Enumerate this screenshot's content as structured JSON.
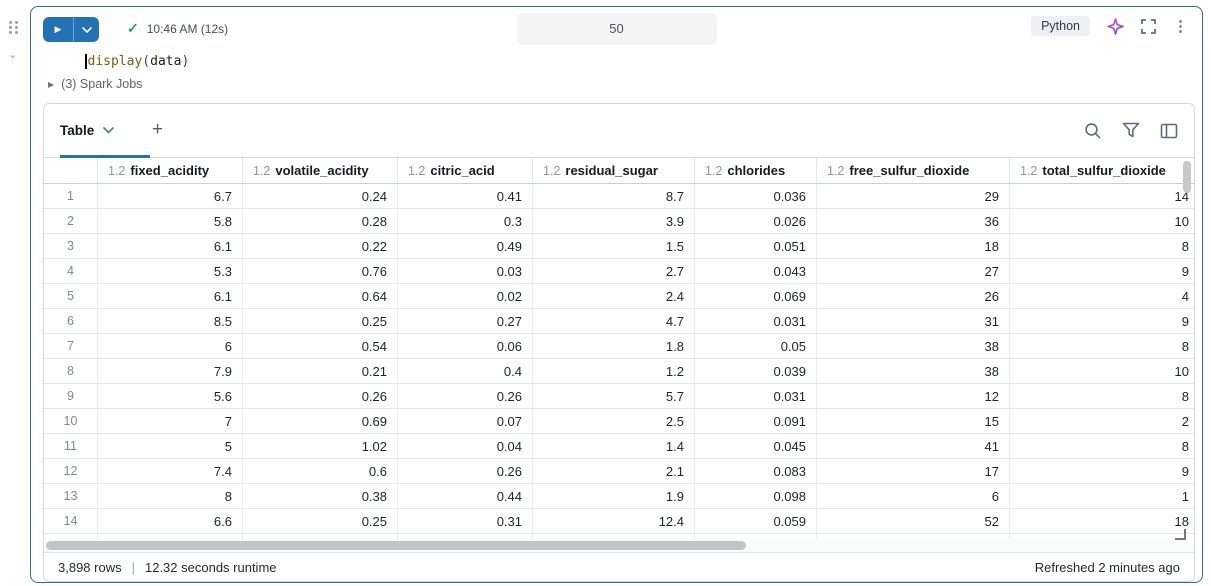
{
  "gutter": {
    "cell_collapse_icon": "⌄"
  },
  "cell_toolbar": {
    "run_icon": "▶",
    "status_icon": "✓",
    "status_text": "10:46 AM (12s)",
    "cell_number": "50",
    "language": "Python",
    "kebab": "⋮"
  },
  "code": {
    "tokens": [
      {
        "text": "display",
        "type": "fn"
      },
      {
        "text": "(",
        "type": "p"
      },
      {
        "text": "data",
        "type": "plain"
      },
      {
        "text": ")",
        "type": "p"
      }
    ]
  },
  "spark_jobs": {
    "expander_icon": "▶",
    "label": "(3) Spark Jobs"
  },
  "results": {
    "tab_label": "Table",
    "add_tab_label": "+",
    "table": {
      "columns": [
        {
          "type": "1.2",
          "name": "fixed_acidity"
        },
        {
          "type": "1.2",
          "name": "volatile_acidity"
        },
        {
          "type": "1.2",
          "name": "citric_acid"
        },
        {
          "type": "1.2",
          "name": "residual_sugar"
        },
        {
          "type": "1.2",
          "name": "chlorides"
        },
        {
          "type": "1.2",
          "name": "free_sulfur_dioxide"
        },
        {
          "type": "1.2",
          "name": "total_sulfur_dioxide"
        }
      ],
      "row_numbers": [
        "1",
        "2",
        "3",
        "4",
        "5",
        "6",
        "7",
        "8",
        "9",
        "10",
        "11",
        "12",
        "13",
        "14"
      ],
      "rows": [
        [
          "6.7",
          "0.24",
          "0.41",
          "8.7",
          "0.036",
          "29",
          "14"
        ],
        [
          "5.8",
          "0.28",
          "0.3",
          "3.9",
          "0.026",
          "36",
          "10"
        ],
        [
          "6.1",
          "0.22",
          "0.49",
          "1.5",
          "0.051",
          "18",
          "8"
        ],
        [
          "5.3",
          "0.76",
          "0.03",
          "2.7",
          "0.043",
          "27",
          "9"
        ],
        [
          "6.1",
          "0.64",
          "0.02",
          "2.4",
          "0.069",
          "26",
          "4"
        ],
        [
          "8.5",
          "0.25",
          "0.27",
          "4.7",
          "0.031",
          "31",
          "9"
        ],
        [
          "6",
          "0.54",
          "0.06",
          "1.8",
          "0.05",
          "38",
          "8"
        ],
        [
          "7.9",
          "0.21",
          "0.4",
          "1.2",
          "0.039",
          "38",
          "10"
        ],
        [
          "5.6",
          "0.26",
          "0.26",
          "5.7",
          "0.031",
          "12",
          "8"
        ],
        [
          "7",
          "0.69",
          "0.07",
          "2.5",
          "0.091",
          "15",
          "2"
        ],
        [
          "5",
          "1.02",
          "0.04",
          "1.4",
          "0.045",
          "41",
          "8"
        ],
        [
          "7.4",
          "0.6",
          "0.26",
          "2.1",
          "0.083",
          "17",
          "9"
        ],
        [
          "8",
          "0.38",
          "0.44",
          "1.9",
          "0.098",
          "6",
          "1"
        ],
        [
          "6.6",
          "0.25",
          "0.31",
          "12.4",
          "0.059",
          "52",
          "18"
        ]
      ]
    },
    "footer": {
      "rows_count": "3,898 rows",
      "separator": "|",
      "runtime": "12.32 seconds runtime",
      "refreshed": "Refreshed 2 minutes ago"
    }
  },
  "colors": {
    "accent_blue": "#2272b4",
    "cell_border_blue": "#35699c",
    "success_green": "#27a35e"
  }
}
